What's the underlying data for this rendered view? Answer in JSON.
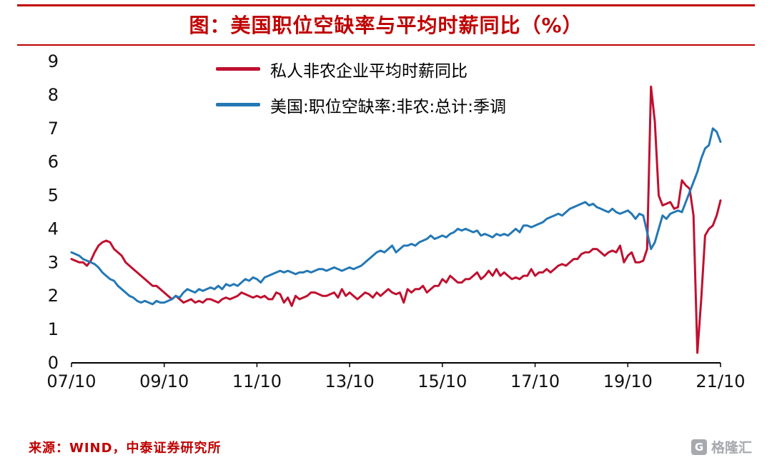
{
  "header": {
    "title": "图：美国职位空缺率与平均时薪同比（%）"
  },
  "footer": {
    "source": "来源：WIND，中泰证券研究所",
    "watermark_icon_letter": "G",
    "watermark_text": "格隆汇"
  },
  "colors": {
    "accent_red": "#c00000",
    "series_red": "#c0102f",
    "series_blue": "#2478b5",
    "axis_black": "#000000",
    "tick_text": "#111111",
    "watermark_gray": "#a6a9ad"
  },
  "chart_data": {
    "type": "line",
    "title": "图：美国职位空缺率与平均时薪同比（%）",
    "xlabel": "",
    "ylabel": "",
    "ylim": [
      0,
      9
    ],
    "y_ticks": [
      0,
      1,
      2,
      3,
      4,
      5,
      6,
      7,
      8,
      9
    ],
    "grid": false,
    "legend_position": "top-center-inside",
    "x_start": "2007-10",
    "x_end": "2021-10",
    "x_frequency": "monthly",
    "x_tick_labels": [
      "07/10",
      "09/10",
      "11/10",
      "13/10",
      "15/10",
      "17/10",
      "19/10",
      "21/10"
    ],
    "x_tick_indices": [
      0,
      24,
      48,
      72,
      96,
      120,
      144,
      168
    ],
    "series": [
      {
        "name": "私人非农企业平均时薪同比",
        "color": "#c0102f",
        "values": [
          3.1,
          3.05,
          3.0,
          3.0,
          2.9,
          3.05,
          3.3,
          3.5,
          3.6,
          3.65,
          3.6,
          3.4,
          3.3,
          3.2,
          3.0,
          2.9,
          2.8,
          2.7,
          2.6,
          2.5,
          2.4,
          2.3,
          2.3,
          2.2,
          2.1,
          2.0,
          1.9,
          2.0,
          1.9,
          1.8,
          1.85,
          1.9,
          1.8,
          1.85,
          1.8,
          1.9,
          1.9,
          1.85,
          1.8,
          1.9,
          1.95,
          1.9,
          1.95,
          2.0,
          2.1,
          2.05,
          2.0,
          1.95,
          2.0,
          1.95,
          2.0,
          1.9,
          1.9,
          2.1,
          2.05,
          1.8,
          1.95,
          1.7,
          2.0,
          1.9,
          1.95,
          2.0,
          2.1,
          2.1,
          2.05,
          2.0,
          2.0,
          2.05,
          2.1,
          1.95,
          2.2,
          2.0,
          2.1,
          2.0,
          1.9,
          2.0,
          2.1,
          2.05,
          1.95,
          2.1,
          2.0,
          2.1,
          2.2,
          2.1,
          2.05,
          2.1,
          1.8,
          2.2,
          2.1,
          2.2,
          2.2,
          2.3,
          2.1,
          2.2,
          2.3,
          2.3,
          2.5,
          2.4,
          2.6,
          2.5,
          2.4,
          2.4,
          2.5,
          2.5,
          2.6,
          2.7,
          2.5,
          2.6,
          2.75,
          2.6,
          2.8,
          2.6,
          2.7,
          2.6,
          2.5,
          2.55,
          2.5,
          2.6,
          2.6,
          2.8,
          2.6,
          2.7,
          2.7,
          2.8,
          2.7,
          2.8,
          2.9,
          2.95,
          2.9,
          3.0,
          3.1,
          3.1,
          3.25,
          3.3,
          3.3,
          3.4,
          3.4,
          3.3,
          3.2,
          3.3,
          3.35,
          3.3,
          3.5,
          3.0,
          3.2,
          3.3,
          3.0,
          3.0,
          3.05,
          3.4,
          8.25,
          7.2,
          5.0,
          4.7,
          4.75,
          4.8,
          4.6,
          4.65,
          5.45,
          5.3,
          5.2,
          4.4,
          0.3,
          1.9,
          3.8,
          4.0,
          4.1,
          4.4,
          4.85
        ]
      },
      {
        "name": "美国:职位空缺率:非农:总计:季调",
        "color": "#2478b5",
        "values": [
          3.3,
          3.25,
          3.2,
          3.1,
          3.05,
          3.0,
          2.95,
          2.85,
          2.7,
          2.6,
          2.5,
          2.45,
          2.3,
          2.2,
          2.1,
          2.0,
          1.95,
          1.85,
          1.8,
          1.85,
          1.8,
          1.75,
          1.85,
          1.8,
          1.8,
          1.85,
          1.9,
          2.0,
          1.95,
          2.1,
          2.2,
          2.15,
          2.1,
          2.2,
          2.15,
          2.2,
          2.25,
          2.2,
          2.3,
          2.2,
          2.35,
          2.3,
          2.35,
          2.3,
          2.4,
          2.5,
          2.45,
          2.55,
          2.5,
          2.4,
          2.55,
          2.6,
          2.65,
          2.7,
          2.75,
          2.7,
          2.75,
          2.7,
          2.65,
          2.7,
          2.7,
          2.75,
          2.7,
          2.75,
          2.8,
          2.8,
          2.75,
          2.8,
          2.85,
          2.8,
          2.75,
          2.8,
          2.85,
          2.8,
          2.85,
          2.9,
          3.0,
          3.1,
          3.2,
          3.3,
          3.35,
          3.3,
          3.4,
          3.5,
          3.3,
          3.4,
          3.5,
          3.5,
          3.55,
          3.5,
          3.6,
          3.65,
          3.7,
          3.8,
          3.7,
          3.75,
          3.8,
          3.75,
          3.85,
          3.9,
          4.0,
          3.95,
          4.0,
          3.95,
          3.9,
          3.95,
          3.8,
          3.85,
          3.8,
          3.75,
          3.85,
          3.8,
          3.85,
          3.8,
          3.9,
          4.0,
          3.9,
          4.1,
          4.1,
          4.05,
          4.1,
          4.15,
          4.2,
          4.3,
          4.35,
          4.4,
          4.45,
          4.4,
          4.5,
          4.6,
          4.65,
          4.7,
          4.75,
          4.8,
          4.7,
          4.75,
          4.65,
          4.6,
          4.55,
          4.5,
          4.6,
          4.5,
          4.45,
          4.5,
          4.55,
          4.45,
          4.3,
          4.45,
          4.4,
          3.9,
          3.4,
          3.6,
          4.0,
          4.4,
          4.3,
          4.45,
          4.5,
          4.55,
          4.5,
          4.8,
          5.1,
          5.4,
          5.7,
          6.1,
          6.4,
          6.5,
          7.0,
          6.9,
          6.6
        ]
      }
    ]
  }
}
